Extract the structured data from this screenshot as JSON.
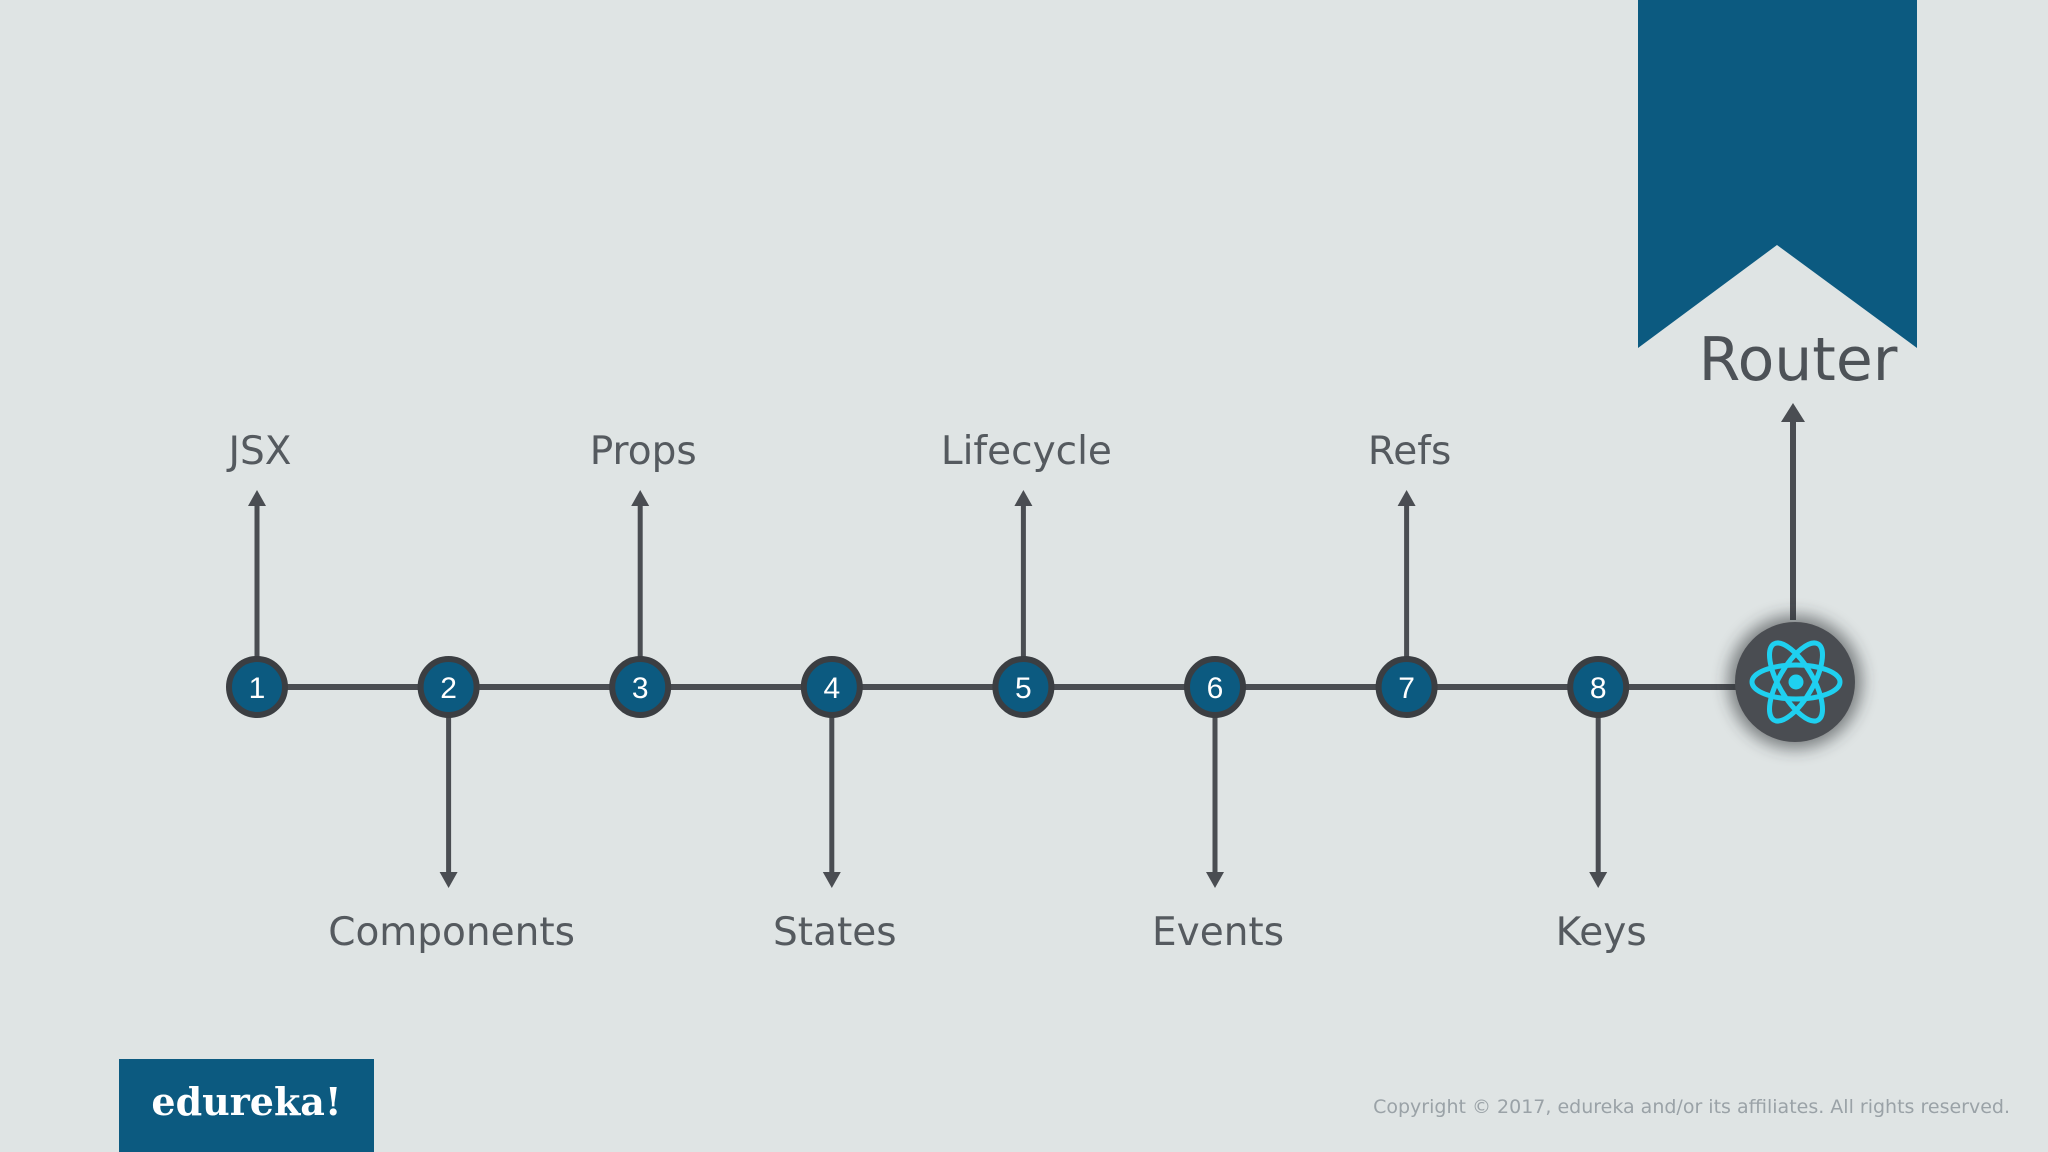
{
  "nodes": [
    {
      "number": "1",
      "label": "JSX",
      "dir": "up"
    },
    {
      "number": "2",
      "label": "Components",
      "dir": "down"
    },
    {
      "number": "3",
      "label": "Props",
      "dir": "up"
    },
    {
      "number": "4",
      "label": "States",
      "dir": "down"
    },
    {
      "number": "5",
      "label": "Lifecycle",
      "dir": "up"
    },
    {
      "number": "6",
      "label": "Events",
      "dir": "down"
    },
    {
      "number": "7",
      "label": "Refs",
      "dir": "up"
    },
    {
      "number": "8",
      "label": "Keys",
      "dir": "down"
    }
  ],
  "router": {
    "label": "Router",
    "icon": "react-atom-icon"
  },
  "logo": {
    "text": "edureka!"
  },
  "copyright": "Copyright © 2017, edureka and/or its affiliates. All rights reserved.",
  "colors": {
    "background": "#dfe4e4",
    "accent": "#0c5a80",
    "line": "#4a4d52",
    "node_fill": "#0c5a80",
    "react": "#1fd0f0"
  }
}
